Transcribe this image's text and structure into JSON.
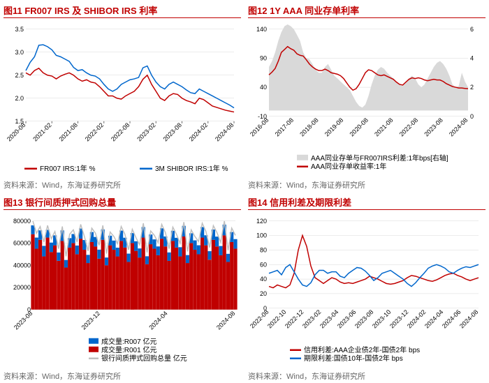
{
  "c11": {
    "title": "图11  FR007 IRS  及 SHIBOR IRS 利率",
    "source": "资料来源：Wind，东海证券研究所",
    "legend": {
      "a": "FR007 IRS:1年 %",
      "b": "3M SHIBOR IRS:1年 %"
    },
    "yticks": [
      "1.5",
      "2.0",
      "2.5",
      "3.0",
      "3.5"
    ],
    "xticks": [
      "2020-08",
      "2021-02",
      "2021-08",
      "2022-02",
      "2022-08",
      "2023-02",
      "2023-08",
      "2024-02",
      "2024-08"
    ],
    "colors": {
      "a": "#c00000",
      "b": "#0066cc",
      "grid": "#d9d9d9"
    },
    "series": {
      "a": [
        2.55,
        2.5,
        2.6,
        2.65,
        2.55,
        2.5,
        2.48,
        2.42,
        2.48,
        2.52,
        2.55,
        2.5,
        2.42,
        2.37,
        2.4,
        2.35,
        2.33,
        2.25,
        2.15,
        2.05,
        2.05,
        2.0,
        1.98,
        2.05,
        2.1,
        2.15,
        2.25,
        2.41,
        2.5,
        2.3,
        2.15,
        2.0,
        1.95,
        2.05,
        2.1,
        2.08,
        2.0,
        1.95,
        1.92,
        1.88,
        2.0,
        1.97,
        1.9,
        1.83,
        1.8,
        1.77,
        1.74,
        1.72,
        1.7
      ],
      "b": [
        2.6,
        2.78,
        2.9,
        3.15,
        3.16,
        3.12,
        3.05,
        2.93,
        2.9,
        2.85,
        2.8,
        2.67,
        2.6,
        2.62,
        2.55,
        2.5,
        2.48,
        2.42,
        2.3,
        2.2,
        2.15,
        2.2,
        2.3,
        2.35,
        2.4,
        2.42,
        2.45,
        2.66,
        2.7,
        2.5,
        2.35,
        2.25,
        2.2,
        2.3,
        2.35,
        2.3,
        2.25,
        2.18,
        2.12,
        2.1,
        2.2,
        2.15,
        2.1,
        2.05,
        2.0,
        1.95,
        1.9,
        1.85,
        1.79
      ]
    }
  },
  "c12": {
    "title": "图12  1Y AAA 同业存单利率",
    "source": "资料来源：Wind，东海证券研究所",
    "legend": {
      "s": "AAA同业存单与FR007IRS利差:1年bps[右轴]",
      "l": "AAA同业存单收益率:1年"
    },
    "yl_ticks": [
      "-10",
      "40",
      "90",
      "140"
    ],
    "yr_ticks": [
      "0",
      "2",
      "4",
      "6"
    ],
    "xticks": [
      "2016-08",
      "2017-08",
      "2018-08",
      "2019-08",
      "2020-08",
      "2021-08",
      "2022-08",
      "2023-08",
      "2024-08"
    ],
    "colors": {
      "spread": "#d9d9d9",
      "line": "#c00000",
      "grid": "#d9d9d9"
    },
    "spread": [
      75,
      85,
      100,
      120,
      135,
      145,
      148,
      145,
      140,
      130,
      120,
      100,
      90,
      88,
      80,
      70,
      65,
      65,
      75,
      80,
      70,
      60,
      55,
      50,
      45,
      40,
      35,
      25,
      15,
      8,
      5,
      10,
      25,
      45,
      60,
      70,
      75,
      72,
      65,
      60,
      55,
      50,
      45,
      42,
      48,
      55,
      60,
      55,
      45,
      40,
      45,
      55,
      65,
      75,
      82,
      85,
      80,
      72,
      60,
      45,
      40,
      42,
      65,
      50,
      40
    ],
    "line": [
      2.85,
      3.05,
      3.3,
      3.8,
      4.4,
      4.6,
      4.8,
      4.65,
      4.55,
      4.3,
      4.2,
      4.15,
      3.9,
      3.6,
      3.4,
      3.25,
      3.15,
      3.15,
      3.25,
      3.15,
      3.0,
      2.95,
      2.9,
      2.8,
      2.6,
      2.3,
      2.0,
      1.8,
      1.9,
      2.2,
      2.6,
      3.0,
      3.2,
      3.15,
      3.0,
      2.85,
      2.8,
      2.85,
      2.75,
      2.65,
      2.55,
      2.35,
      2.2,
      2.15,
      2.35,
      2.55,
      2.65,
      2.6,
      2.65,
      2.6,
      2.5,
      2.45,
      2.5,
      2.55,
      2.5,
      2.5,
      2.4,
      2.25,
      2.15,
      2.05,
      2.0,
      1.95,
      1.95,
      1.92,
      1.9
    ]
  },
  "c13": {
    "title": "图13  银行间质押式回购总量",
    "source": "资料来源：Wind，东海证券研究所",
    "legend": {
      "r7": "成交量:R007 亿元",
      "r1": "成交量:R001 亿元",
      "t": "银行间质押式回购总量 亿元"
    },
    "yticks": [
      "0",
      "20000",
      "40000",
      "60000",
      "80000"
    ],
    "xticks": [
      "2023-08",
      "2023-12",
      "2024-04",
      "2024-08"
    ],
    "colors": {
      "r7": "#0066cc",
      "r1": "#c00000",
      "total": "#bfbfbf",
      "grid": "#d9d9d9"
    },
    "r7": [
      8000,
      10000,
      8500,
      9500,
      7000,
      8500,
      9000,
      7500,
      9500,
      6800,
      8500,
      8200,
      7800,
      9200,
      8800,
      7400,
      9000,
      8600,
      8100,
      9400,
      7000,
      8700,
      8300,
      7900,
      9300,
      8900,
      7500,
      9100,
      8700,
      8200,
      9500,
      7100,
      8800,
      8400,
      8000,
      9400,
      9000,
      7600,
      9200,
      8800,
      8300,
      9600,
      7200,
      8900,
      8500,
      8100,
      9500,
      9100,
      7700,
      9300,
      8900,
      8400,
      9700,
      7300,
      9000,
      8600
    ],
    "r1": [
      68000,
      55000,
      63000,
      48000,
      65000,
      52000,
      58000,
      44000,
      62000,
      38000,
      56000,
      60000,
      50000,
      64000,
      54000,
      42000,
      61000,
      57000,
      46000,
      63000,
      40000,
      58000,
      54000,
      48000,
      62000,
      56000,
      43000,
      60000,
      53000,
      47000,
      65000,
      41000,
      59000,
      55000,
      49000,
      64000,
      57000,
      44000,
      62000,
      56000,
      48000,
      66000,
      42000,
      60000,
      54000,
      50000,
      65000,
      58000,
      45000,
      63000,
      57000,
      49000,
      67000,
      43000,
      61000,
      55000
    ],
    "total": [
      80000,
      69000,
      75000,
      61000,
      76000,
      64000,
      70500,
      55000,
      75000,
      48000,
      68000,
      72000,
      61000,
      77000,
      66000,
      53000,
      73500,
      69000,
      58000,
      76000,
      50500,
      70000,
      66000,
      59500,
      75000,
      68000,
      54000,
      72500,
      65000,
      58500,
      78000,
      51500,
      71000,
      67000,
      60500,
      77000,
      69500,
      55000,
      74500,
      68000,
      59800,
      79000,
      52500,
      72000,
      66000,
      61500,
      78000,
      70500,
      56000,
      75800,
      69500,
      60800,
      80000,
      53500,
      73500,
      67000
    ]
  },
  "c14": {
    "title": "图14  信用利差及期限利差",
    "source": "资料来源：Wind，东海证券研究所",
    "legend": {
      "c": "信用利差:AAA企业债2年-国债2年 bps",
      "t": "期限利差:国债10年-国债2年 bps"
    },
    "yticks": [
      "0",
      "20",
      "40",
      "60",
      "80",
      "100",
      "120"
    ],
    "xticks": [
      "2022-08",
      "2022-10",
      "2022-12",
      "2023-02",
      "2023-04",
      "2023-06",
      "2023-08",
      "2023-10",
      "2023-12",
      "2024-02",
      "2024-04",
      "2024-06",
      "2024-08"
    ],
    "colors": {
      "c": "#c00000",
      "t": "#0066cc",
      "grid": "#d9d9d9"
    },
    "sc": [
      30,
      28,
      32,
      30,
      28,
      32,
      48,
      80,
      100,
      85,
      58,
      42,
      38,
      34,
      38,
      42,
      40,
      36,
      34,
      35,
      34,
      36,
      38,
      40,
      44,
      42,
      40,
      37,
      34,
      33,
      34,
      36,
      38,
      42,
      45,
      44,
      42,
      40,
      38,
      37,
      39,
      42,
      45,
      47,
      48,
      45,
      43,
      40,
      38,
      40,
      42
    ],
    "st": [
      48,
      50,
      52,
      46,
      56,
      60,
      50,
      40,
      32,
      30,
      35,
      46,
      52,
      52,
      48,
      50,
      50,
      44,
      42,
      48,
      52,
      56,
      55,
      51,
      45,
      38,
      42,
      48,
      50,
      52,
      48,
      44,
      40,
      34,
      30,
      35,
      42,
      48,
      55,
      58,
      60,
      58,
      55,
      50,
      48,
      52,
      55,
      57,
      56,
      58,
      60
    ]
  }
}
